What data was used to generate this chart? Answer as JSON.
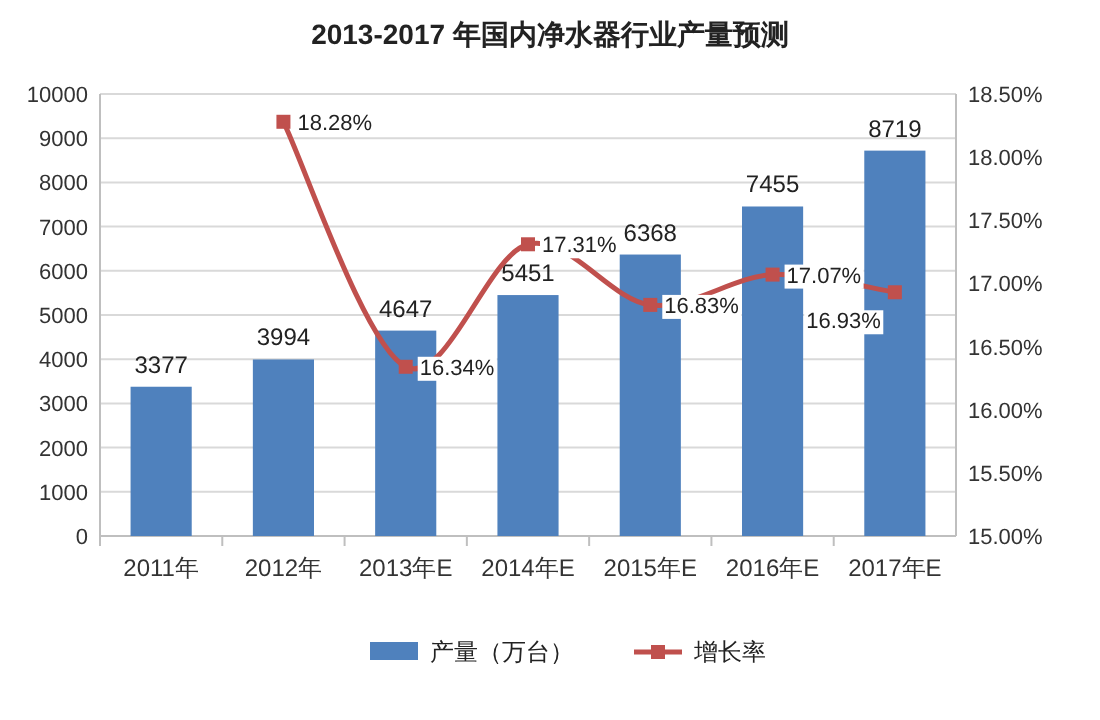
{
  "chart_data": {
    "type": "bar",
    "title": "2013-2017 年国内净水器行业产量预测",
    "categories": [
      "2011年",
      "2012年",
      "2013年E",
      "2014年E",
      "2015年E",
      "2016年E",
      "2017年E"
    ],
    "series": [
      {
        "name": "产量（万台）",
        "color": "#4f81bd",
        "values": [
          3377,
          3994,
          4647,
          5451,
          6368,
          7455,
          8719
        ],
        "value_labels": [
          "3377",
          "3994",
          "4647",
          "5451",
          "6368",
          "7455",
          "8719"
        ]
      },
      {
        "name": "增长率",
        "type": "line",
        "axis": "y2",
        "color": "#c0504d",
        "marker": "square",
        "values": [
          null,
          18.28,
          16.34,
          17.31,
          16.83,
          17.07,
          16.93
        ],
        "value_labels": [
          null,
          "18.28%",
          "16.34%",
          "17.31%",
          "16.83%",
          "17.07%",
          "16.93%"
        ]
      }
    ],
    "ylim": [
      0,
      10000
    ],
    "yticks": [
      0,
      1000,
      2000,
      3000,
      4000,
      5000,
      6000,
      7000,
      8000,
      9000,
      10000
    ],
    "y2lim": [
      15,
      18.5
    ],
    "y2ticks": [
      {
        "value": 15,
        "label": "15.00%"
      },
      {
        "value": 15.5,
        "label": "15.50%"
      },
      {
        "value": 16,
        "label": "16.00%"
      },
      {
        "value": 16.5,
        "label": "16.50%"
      },
      {
        "value": 17,
        "label": "17.00%"
      },
      {
        "value": 17.5,
        "label": "17.50%"
      },
      {
        "value": 18,
        "label": "18.00%"
      },
      {
        "value": 18.5,
        "label": "18.50%"
      }
    ],
    "grid": "y",
    "legend": "bottom"
  }
}
